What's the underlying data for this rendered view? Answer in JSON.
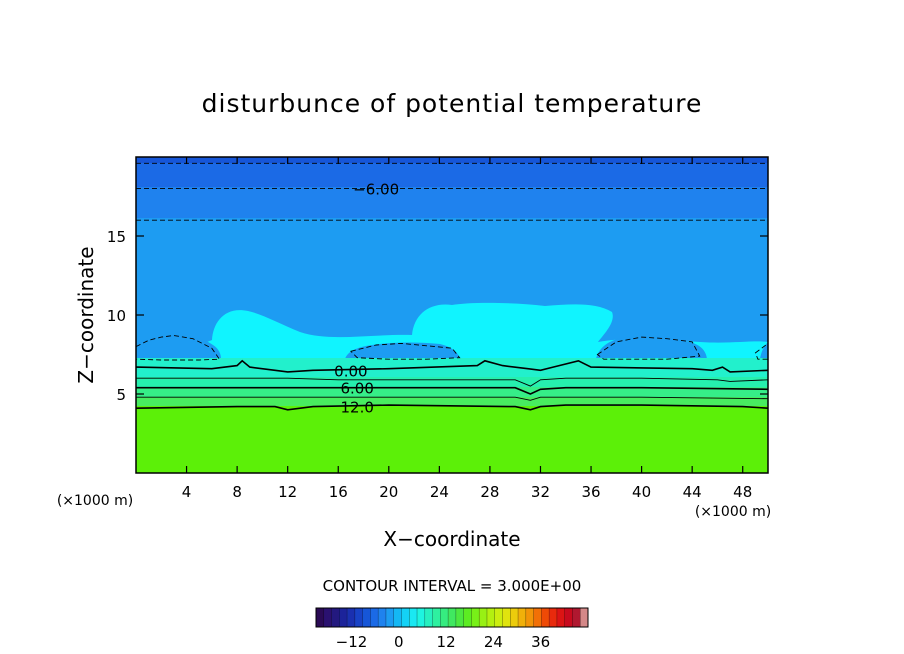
{
  "chart_data": {
    "type": "contour",
    "title": "disturbunce of potential temperature",
    "xlabel": "X−coordinate",
    "ylabel": "Z−coordinate",
    "x_unit": "(×1000 m)",
    "y_unit": "(×1000 m)",
    "xlim": [
      0,
      50
    ],
    "ylim": [
      0,
      20
    ],
    "x_ticks": [
      4,
      8,
      12,
      16,
      20,
      24,
      28,
      32,
      36,
      40,
      44,
      48
    ],
    "y_ticks": [
      5,
      10,
      15
    ],
    "contour_interval_label": "CONTOUR INTERVAL = 3.000E+00",
    "contour_labels": [
      {
        "text": "−6.00",
        "x": 19,
        "z": 18.0
      },
      {
        "text": "0.00",
        "x": 17,
        "z": 6.5
      },
      {
        "text": "6.00",
        "x": 17.5,
        "z": 5.4
      },
      {
        "text": "12.0",
        "x": 17.5,
        "z": 4.2
      }
    ],
    "contours": [
      {
        "level": -9,
        "style": "dashed",
        "x": [
          0,
          50
        ],
        "z": [
          19.6,
          19.6
        ]
      },
      {
        "level": -6,
        "style": "dashed",
        "x": [
          0,
          50
        ],
        "z": [
          18.0,
          18.0
        ]
      },
      {
        "level": -3,
        "style": "dashed",
        "x": [
          0,
          50
        ],
        "z": [
          16.0,
          16.0
        ]
      },
      {
        "level": -3,
        "style": "dashed",
        "closed": true,
        "x": [
          0,
          1,
          2,
          3,
          4.5,
          6,
          6.6,
          5,
          2,
          0
        ],
        "z": [
          8.0,
          8.4,
          8.6,
          8.7,
          8.5,
          7.9,
          7.2,
          7.15,
          7.15,
          7.2
        ]
      },
      {
        "level": -3,
        "style": "dashed",
        "closed": true,
        "x": [
          17,
          19,
          21,
          23,
          25,
          25.6,
          23,
          20,
          17.5,
          17
        ],
        "z": [
          7.7,
          8.1,
          8.2,
          8.05,
          7.9,
          7.3,
          7.2,
          7.2,
          7.3,
          7.7
        ]
      },
      {
        "level": -3,
        "style": "dashed",
        "closed": true,
        "x": [
          36.5,
          38,
          40,
          42,
          44,
          44.6,
          42,
          39,
          37,
          36.5
        ],
        "z": [
          7.5,
          8.3,
          8.6,
          8.5,
          8.3,
          7.4,
          7.2,
          7.2,
          7.2,
          7.5
        ]
      },
      {
        "level": -3,
        "style": "dashed",
        "closed": true,
        "x": [
          49,
          50,
          50,
          49.2,
          49
        ],
        "z": [
          7.6,
          8.2,
          7.2,
          7.2,
          7.6
        ]
      },
      {
        "level": 0,
        "style": "solid",
        "x": [
          0,
          6,
          8,
          8.4,
          9,
          11,
          12,
          14,
          20,
          27,
          27.6,
          29,
          31,
          32,
          33,
          35,
          36,
          44,
          45.6,
          46.4,
          47,
          50
        ],
        "z": [
          6.7,
          6.6,
          6.8,
          7.1,
          6.7,
          6.5,
          6.4,
          6.5,
          6.6,
          6.8,
          7.1,
          6.8,
          6.6,
          6.5,
          6.7,
          7.1,
          6.7,
          6.6,
          6.5,
          6.7,
          6.4,
          6.5
        ]
      },
      {
        "level": 3,
        "style": "solid",
        "x": [
          0,
          12,
          16,
          20,
          30,
          31.2,
          32,
          34,
          40,
          46,
          47,
          50
        ],
        "z": [
          6.0,
          6.0,
          5.9,
          5.9,
          5.9,
          5.5,
          5.9,
          6.0,
          6.0,
          5.9,
          5.8,
          5.9
        ]
      },
      {
        "level": 6,
        "style": "solid",
        "x": [
          0,
          10,
          20,
          30,
          31.2,
          32,
          34,
          40,
          50
        ],
        "z": [
          5.4,
          5.4,
          5.4,
          5.4,
          5.0,
          5.3,
          5.4,
          5.4,
          5.3
        ]
      },
      {
        "level": 9,
        "style": "solid",
        "x": [
          0,
          10,
          20,
          30,
          31.2,
          32,
          34,
          40,
          50
        ],
        "z": [
          4.8,
          4.8,
          4.8,
          4.8,
          4.6,
          4.8,
          4.8,
          4.8,
          4.7
        ]
      },
      {
        "level": 12,
        "style": "solid",
        "x": [
          0,
          8,
          11,
          12,
          14,
          20,
          30,
          31.2,
          32,
          34,
          40,
          48,
          50
        ],
        "z": [
          4.1,
          4.2,
          4.2,
          4.0,
          4.2,
          4.3,
          4.2,
          4.0,
          4.2,
          4.3,
          4.3,
          4.2,
          4.1
        ]
      }
    ],
    "colorbar": {
      "min": -21,
      "max": 48,
      "ticks": [
        -12,
        0,
        12,
        24,
        36
      ],
      "colors": [
        "#2a0a55",
        "#2a1170",
        "#23197f",
        "#1c239a",
        "#1a30b0",
        "#1842c6",
        "#1656d8",
        "#1b6ae6",
        "#1f82ee",
        "#1d9cf2",
        "#14b8f4",
        "#14d2f6",
        "#1ae8f2",
        "#1ef4e0",
        "#26f0c0",
        "#2ef0a0",
        "#36ec80",
        "#40e860",
        "#4ce840",
        "#5cec22",
        "#78f018",
        "#98f014",
        "#b4f010",
        "#ccee10",
        "#e0e40e",
        "#eccc0c",
        "#f0b00a",
        "#f29408",
        "#f27006",
        "#ee4a06",
        "#e82a0c",
        "#dc1414",
        "#c80a1e",
        "#b01830",
        "#d48888"
      ]
    },
    "fill_colors": {
      "top_band_1": "#1656d8",
      "top_band_2": "#1b6ae6",
      "top_band_3": "#1f82ee",
      "upper_field": "#1d9cf2",
      "cells": "#1d9cf2",
      "cyan_cloud": "#10f4ff",
      "band_0_3": "#22f0cc",
      "band_3_6": "#26f0ae",
      "band_6_9": "#36ee88",
      "band_9_12": "#48ec60",
      "lower_field": "#5cf008"
    }
  }
}
